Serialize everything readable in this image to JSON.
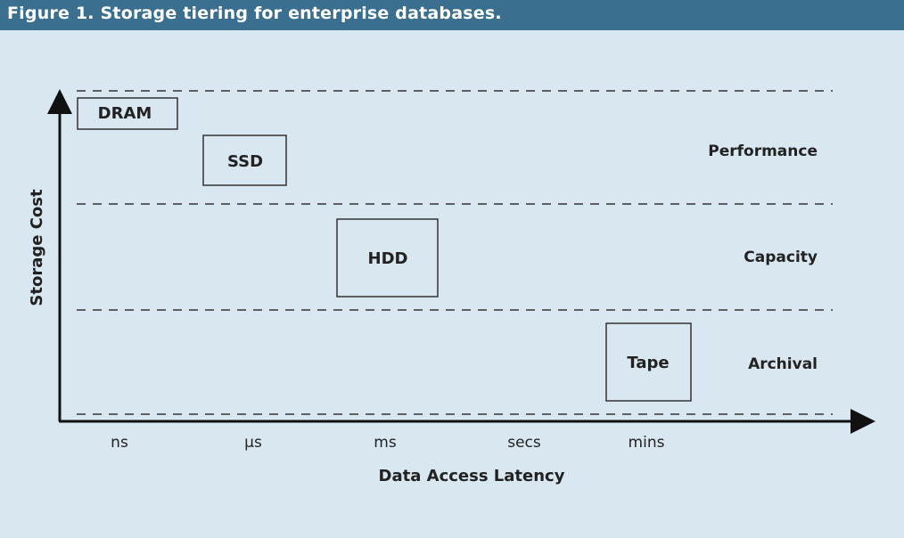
{
  "figure": {
    "title": "Figure 1. Storage tiering for enterprise databases."
  },
  "axes": {
    "x_title": "Data Access Latency",
    "y_title": "Storage Cost",
    "x_ticks": [
      "ns",
      "µs",
      "ms",
      "secs",
      "mins"
    ]
  },
  "tiers": [
    {
      "label": "Performance"
    },
    {
      "label": "Capacity"
    },
    {
      "label": "Archival"
    }
  ],
  "boxes": [
    {
      "label": "DRAM"
    },
    {
      "label": "SSD"
    },
    {
      "label": "HDD"
    },
    {
      "label": "Tape"
    }
  ],
  "colors": {
    "title_bar": "#3a6f90",
    "background": "#d9e7f0",
    "ink": "#222222"
  }
}
